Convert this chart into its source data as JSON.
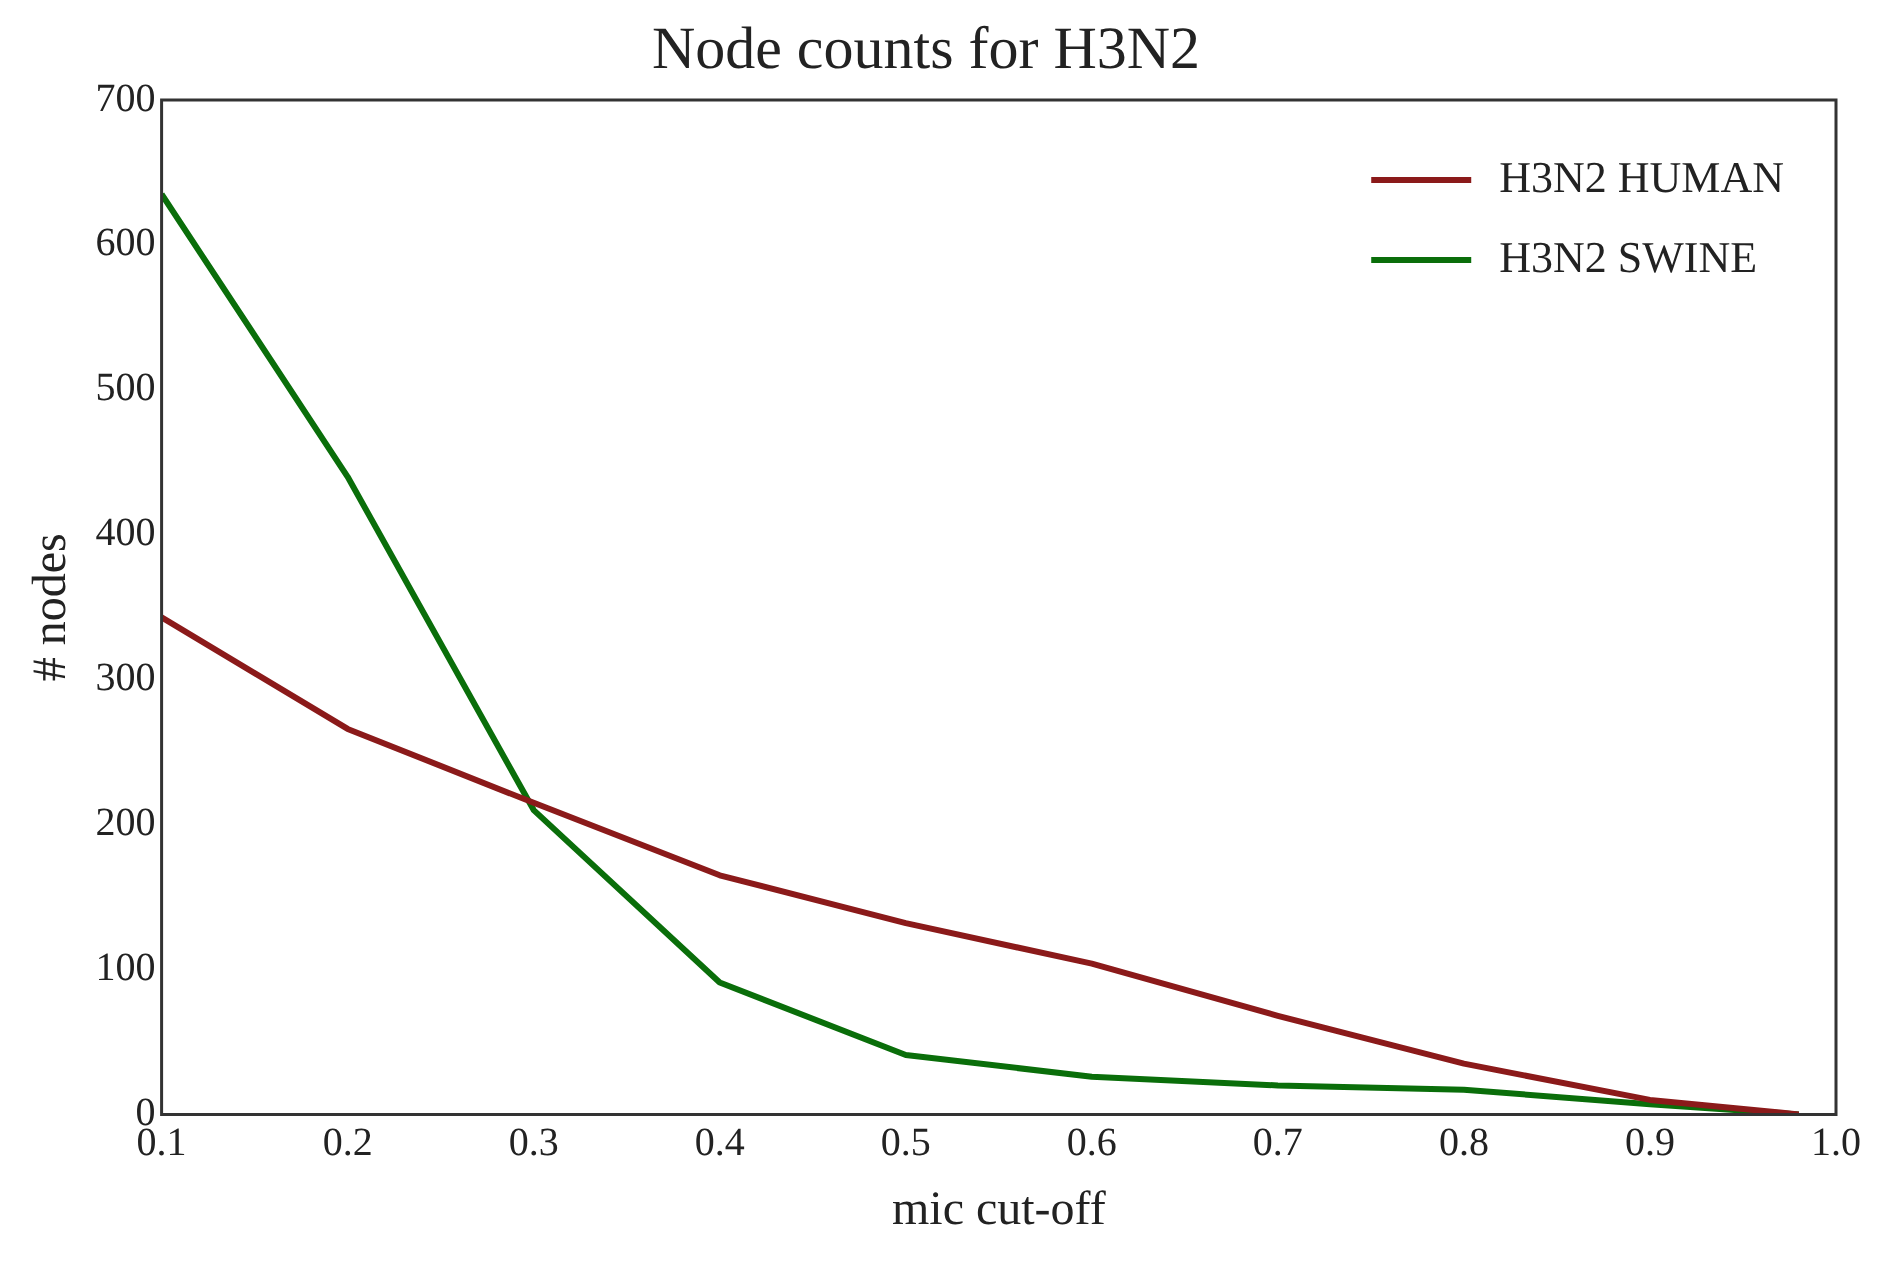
{
  "chart_data": {
    "type": "line",
    "title": "Node counts for H3N2",
    "xlabel": "mic cut-off",
    "ylabel": "# nodes",
    "xlim": [
      0.1,
      1.0
    ],
    "xticks": [
      0.1,
      0.2,
      0.3,
      0.4,
      0.5,
      0.6,
      0.7,
      0.8,
      0.9,
      {
        "value": 1.0,
        "label": "1.0"
      }
    ],
    "ylim": [
      0,
      700
    ],
    "yticks": [
      0,
      100,
      200,
      300,
      400,
      500,
      600,
      700
    ],
    "x": [
      0.1,
      0.2,
      0.3,
      0.4,
      0.5,
      0.6,
      0.7,
      0.8,
      0.9,
      0.98
    ],
    "series": [
      {
        "name": "H3N2 HUMAN",
        "color": "#8b1a1a",
        "values": [
          343,
          266,
          215,
          165,
          132,
          104,
          68,
          35,
          10,
          0
        ]
      },
      {
        "name": "H3N2 SWINE",
        "color": "#0a6e0a",
        "values": [
          635,
          440,
          210,
          91,
          41,
          26,
          20,
          17,
          7,
          0
        ]
      }
    ],
    "grid": false,
    "legend": "top right",
    "marker": "none",
    "line_style": "solid"
  }
}
